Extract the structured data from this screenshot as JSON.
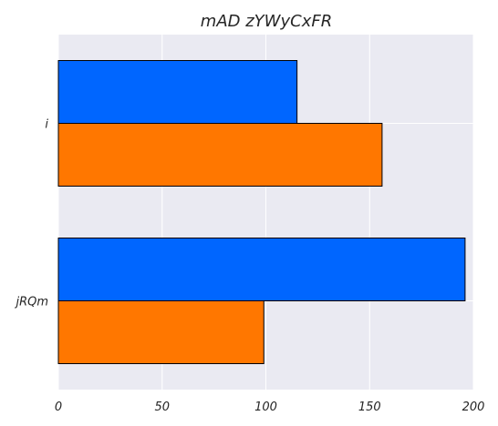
{
  "chart_data": {
    "type": "bar",
    "orientation": "horizontal",
    "title": "mAD  zYWyCxFR",
    "categories": [
      "i",
      "jRQm"
    ],
    "series": [
      {
        "values": [
          115,
          196
        ],
        "color": "#0066ff"
      },
      {
        "values": [
          156,
          99
        ],
        "color": "#ff7700"
      }
    ],
    "xlim": [
      0,
      200
    ],
    "xticks": [
      0,
      50,
      100,
      150,
      200
    ],
    "xlabel": "",
    "ylabel": "",
    "grid": true,
    "legend": false,
    "colors": {
      "plot_background": "#eaeaf2",
      "grid": "#ffffff",
      "bar_edge": "#000000"
    }
  }
}
